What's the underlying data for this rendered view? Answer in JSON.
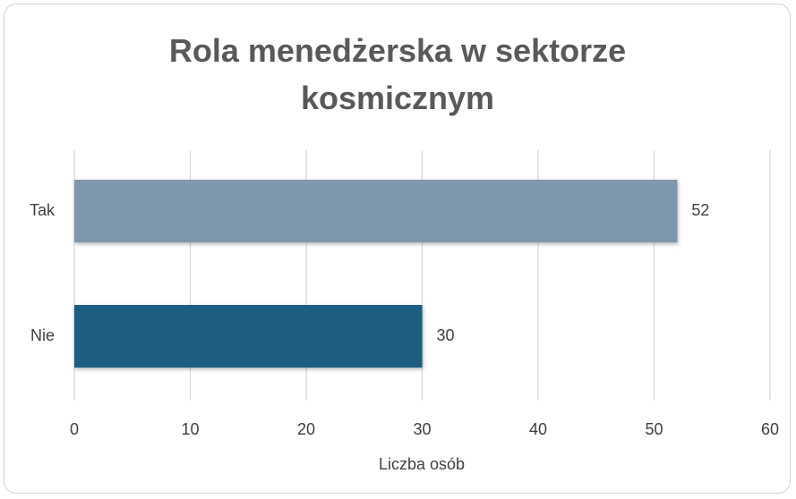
{
  "chart_data": {
    "type": "bar",
    "orientation": "horizontal",
    "title": "Rola menedżerska w sektorze kosmicznym",
    "categories": [
      "Tak",
      "Nie"
    ],
    "values": [
      52,
      30
    ],
    "colors": [
      "#7f97ac",
      "#1d5e80"
    ],
    "xlabel": "Liczba osób",
    "xlim": [
      0,
      60
    ],
    "xticks": [
      0,
      10,
      20,
      30,
      40,
      50,
      60
    ],
    "grid": true
  }
}
